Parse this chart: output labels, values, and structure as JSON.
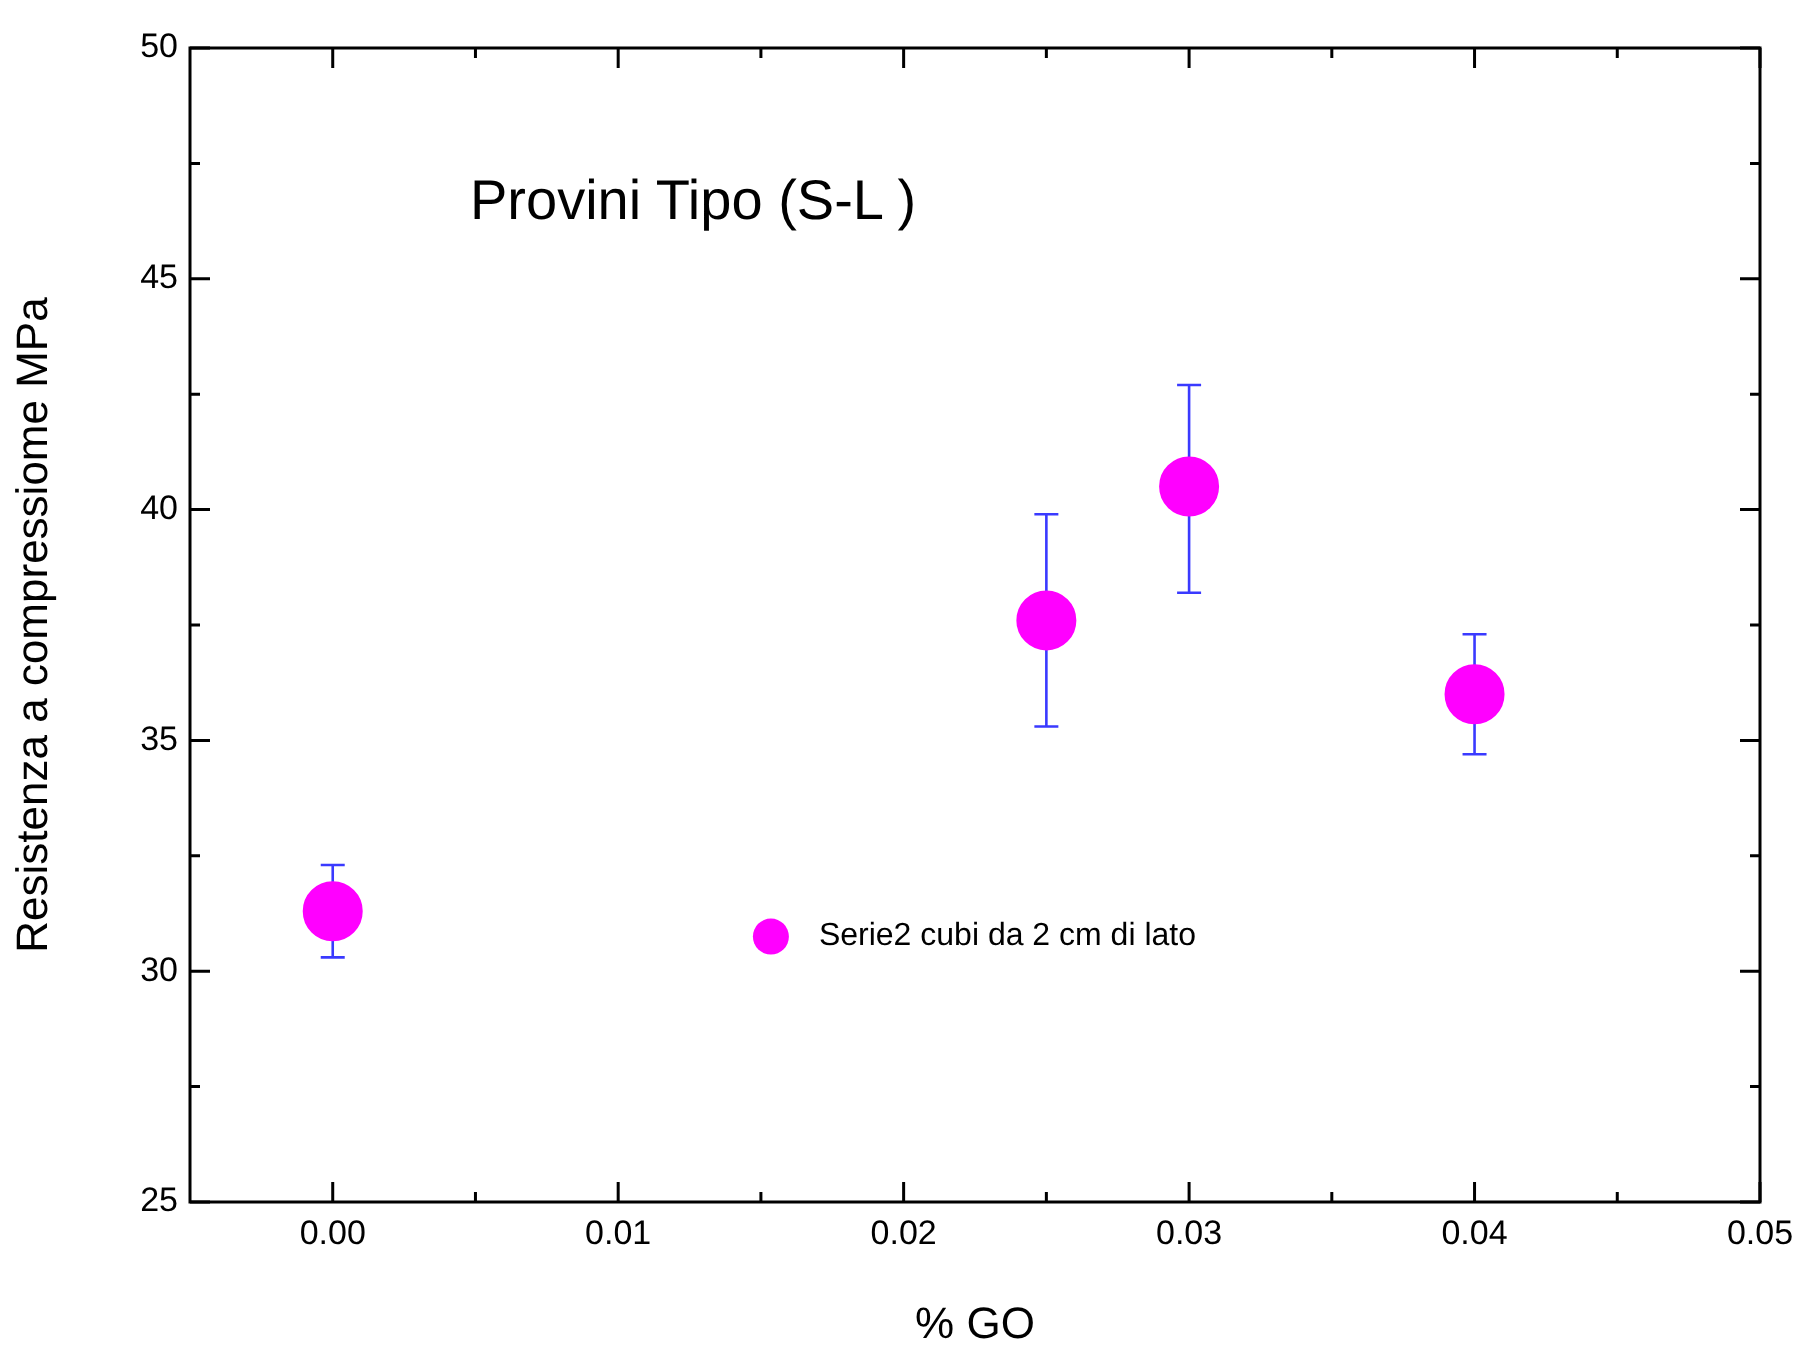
{
  "chart_data": {
    "type": "scatter",
    "title": "Provini Tipo (S-L )",
    "xlabel": "% GO",
    "ylabel": "Resistenza a compressiome MPa",
    "xlim": [
      -0.005,
      0.05
    ],
    "xticks": [
      {
        "value": 0,
        "label": "0.00"
      },
      0.01,
      0.02,
      0.03,
      0.04,
      0.05
    ],
    "ylim": [
      25,
      50
    ],
    "yticks": [
      25,
      30,
      35,
      40,
      45,
      50
    ],
    "legend": "bottom",
    "marker": "circle",
    "series": [
      {
        "name": "Serie2 cubi da 2 cm di lato",
        "color": "#ff00ff",
        "x": [
          0,
          0.025,
          0.03,
          0.04
        ],
        "values": [
          31.3,
          37.6,
          40.5,
          36.0
        ],
        "errors": [
          [
            30.3,
            32.3
          ],
          [
            35.3,
            39.9
          ],
          [
            38.2,
            42.7
          ],
          [
            34.7,
            37.3
          ]
        ]
      }
    ]
  }
}
